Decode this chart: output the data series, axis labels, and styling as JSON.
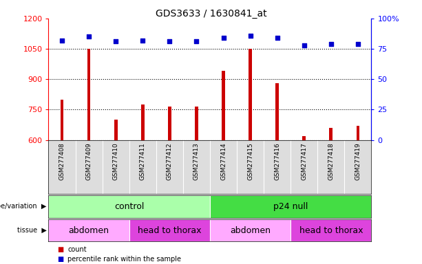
{
  "title": "GDS3633 / 1630841_at",
  "samples": [
    "GSM277408",
    "GSM277409",
    "GSM277410",
    "GSM277411",
    "GSM277412",
    "GSM277413",
    "GSM277414",
    "GSM277415",
    "GSM277416",
    "GSM277417",
    "GSM277418",
    "GSM277419"
  ],
  "counts": [
    800,
    1050,
    700,
    775,
    765,
    765,
    940,
    1050,
    880,
    620,
    660,
    670
  ],
  "percentile_ranks": [
    82,
    85,
    81,
    82,
    81,
    81,
    84,
    86,
    84,
    78,
    79,
    79
  ],
  "ylim_left": [
    600,
    1200
  ],
  "ylim_right": [
    0,
    100
  ],
  "yticks_left": [
    600,
    750,
    900,
    1050,
    1200
  ],
  "yticks_right": [
    0,
    25,
    50,
    75,
    100
  ],
  "bar_color": "#cc0000",
  "dot_color": "#0000cc",
  "genotype_groups": [
    {
      "label": "control",
      "start": 0,
      "end": 6,
      "color": "#aaffaa"
    },
    {
      "label": "p24 null",
      "start": 6,
      "end": 12,
      "color": "#44dd44"
    }
  ],
  "tissue_groups": [
    {
      "label": "abdomen",
      "start": 0,
      "end": 3,
      "color": "#ffaaff"
    },
    {
      "label": "head to thorax",
      "start": 3,
      "end": 6,
      "color": "#dd44dd"
    },
    {
      "label": "abdomen",
      "start": 6,
      "end": 9,
      "color": "#ffaaff"
    },
    {
      "label": "head to thorax",
      "start": 9,
      "end": 12,
      "color": "#dd44dd"
    }
  ],
  "genotype_label": "genotype/variation",
  "tissue_label": "tissue",
  "legend_count": "count",
  "legend_percentile": "percentile rank within the sample",
  "label_bg": "#dddddd",
  "background_color": "#ffffff"
}
